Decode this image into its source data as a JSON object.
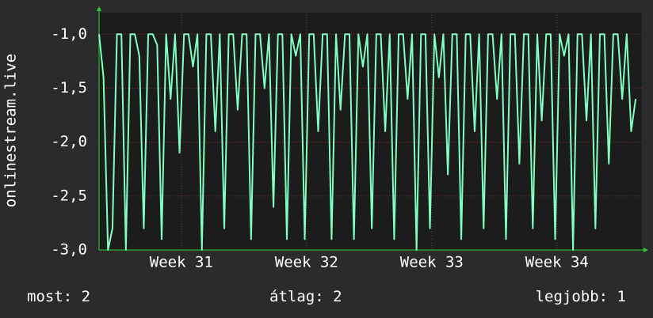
{
  "chart_data": {
    "type": "line",
    "ylabel": "onlinestream.live",
    "x": [
      0,
      0.25,
      0.5,
      0.75,
      1,
      1.25,
      1.5,
      1.75,
      2,
      2.25,
      2.5,
      2.75,
      3,
      3.25,
      3.5,
      3.75,
      4,
      4.25,
      4.5,
      4.75,
      5,
      5.25,
      5.5,
      5.75,
      6,
      6.25,
      6.5,
      6.75,
      7,
      7.25,
      7.5,
      7.75,
      8,
      8.25,
      8.5,
      8.75,
      9,
      9.25,
      9.5,
      9.75,
      10,
      10.25,
      10.5,
      10.75,
      11,
      11.25,
      11.5,
      11.75,
      12,
      12.25,
      12.5,
      12.75,
      13,
      13.25,
      13.5,
      13.75,
      14,
      14.25,
      14.5,
      14.75,
      15,
      15.25,
      15.5,
      15.75,
      16,
      16.25,
      16.5,
      16.75,
      17,
      17.25,
      17.5,
      17.75,
      18,
      18.25,
      18.5,
      18.75,
      19,
      19.25,
      19.5,
      19.75,
      20,
      20.25,
      20.5,
      20.75,
      21,
      21.25,
      21.5,
      21.75,
      22,
      22.25,
      22.5,
      22.75,
      23,
      23.25,
      23.5,
      23.75,
      24,
      24.25,
      24.5,
      24.75,
      25,
      25.25,
      25.5,
      25.75,
      26,
      26.25,
      26.5,
      26.75,
      27,
      27.25,
      27.5,
      27.75,
      28,
      28.25,
      28.5,
      28.75,
      29,
      29.25,
      29.5,
      29.75,
      30
    ],
    "series": [
      {
        "color": "#80ffc0",
        "values": [
          -1,
          -1.4,
          -3,
          -2.8,
          -1,
          -1,
          -3,
          -1,
          -1,
          -1.2,
          -2.8,
          -1,
          -1,
          -1.1,
          -2.9,
          -1,
          -1.6,
          -1,
          -2.1,
          -1,
          -1,
          -1.3,
          -1,
          -3,
          -1,
          -1,
          -1.9,
          -1,
          -2.8,
          -1,
          -1,
          -1.7,
          -1,
          -1,
          -2.9,
          -1,
          -1,
          -1.5,
          -1,
          -2.6,
          -1,
          -1,
          -2.9,
          -1,
          -1.2,
          -1,
          -2.9,
          -1,
          -1,
          -1.9,
          -1,
          -1,
          -2.9,
          -1,
          -1.7,
          -1,
          -1,
          -2.9,
          -1,
          -1.3,
          -1,
          -2.8,
          -1,
          -1,
          -1.9,
          -1,
          -2.9,
          -1,
          -1,
          -1.6,
          -1,
          -3,
          -1,
          -1,
          -2.8,
          -1,
          -1.4,
          -1,
          -2.3,
          -1,
          -1,
          -2.9,
          -1,
          -1,
          -1.9,
          -1,
          -2.8,
          -1,
          -1,
          -1.6,
          -1,
          -2.9,
          -1,
          -1,
          -2.2,
          -1,
          -1,
          -2.8,
          -1,
          -1.8,
          -1,
          -1,
          -2.9,
          -1,
          -1.2,
          -1,
          -3,
          -1,
          -1,
          -1.8,
          -1,
          -2.8,
          -1,
          -1,
          -2.2,
          -1,
          -1,
          -1.6,
          -1,
          -1.9,
          -1.6
        ]
      }
    ],
    "xlim": [
      0,
      30.35
    ],
    "xticks": [
      {
        "value": 4.6,
        "label": "Week 31"
      },
      {
        "value": 11.6,
        "label": "Week 32"
      },
      {
        "value": 18.6,
        "label": "Week 33"
      },
      {
        "value": 25.6,
        "label": "Week 34"
      }
    ],
    "ylim": [
      -3,
      -0.8
    ],
    "yticks": [
      {
        "value": -3,
        "label": "-3,0"
      },
      {
        "value": -2.5,
        "label": "-2,5"
      },
      {
        "value": -2,
        "label": "-2,0"
      },
      {
        "value": -1.5,
        "label": "-1,5"
      },
      {
        "value": -1,
        "label": "-1,0"
      }
    ],
    "grid": true,
    "stats": [
      {
        "label": "most:",
        "value": 2
      },
      {
        "label": "átlag:",
        "value": 2
      },
      {
        "label": "legjobb:",
        "value": 1
      }
    ]
  }
}
